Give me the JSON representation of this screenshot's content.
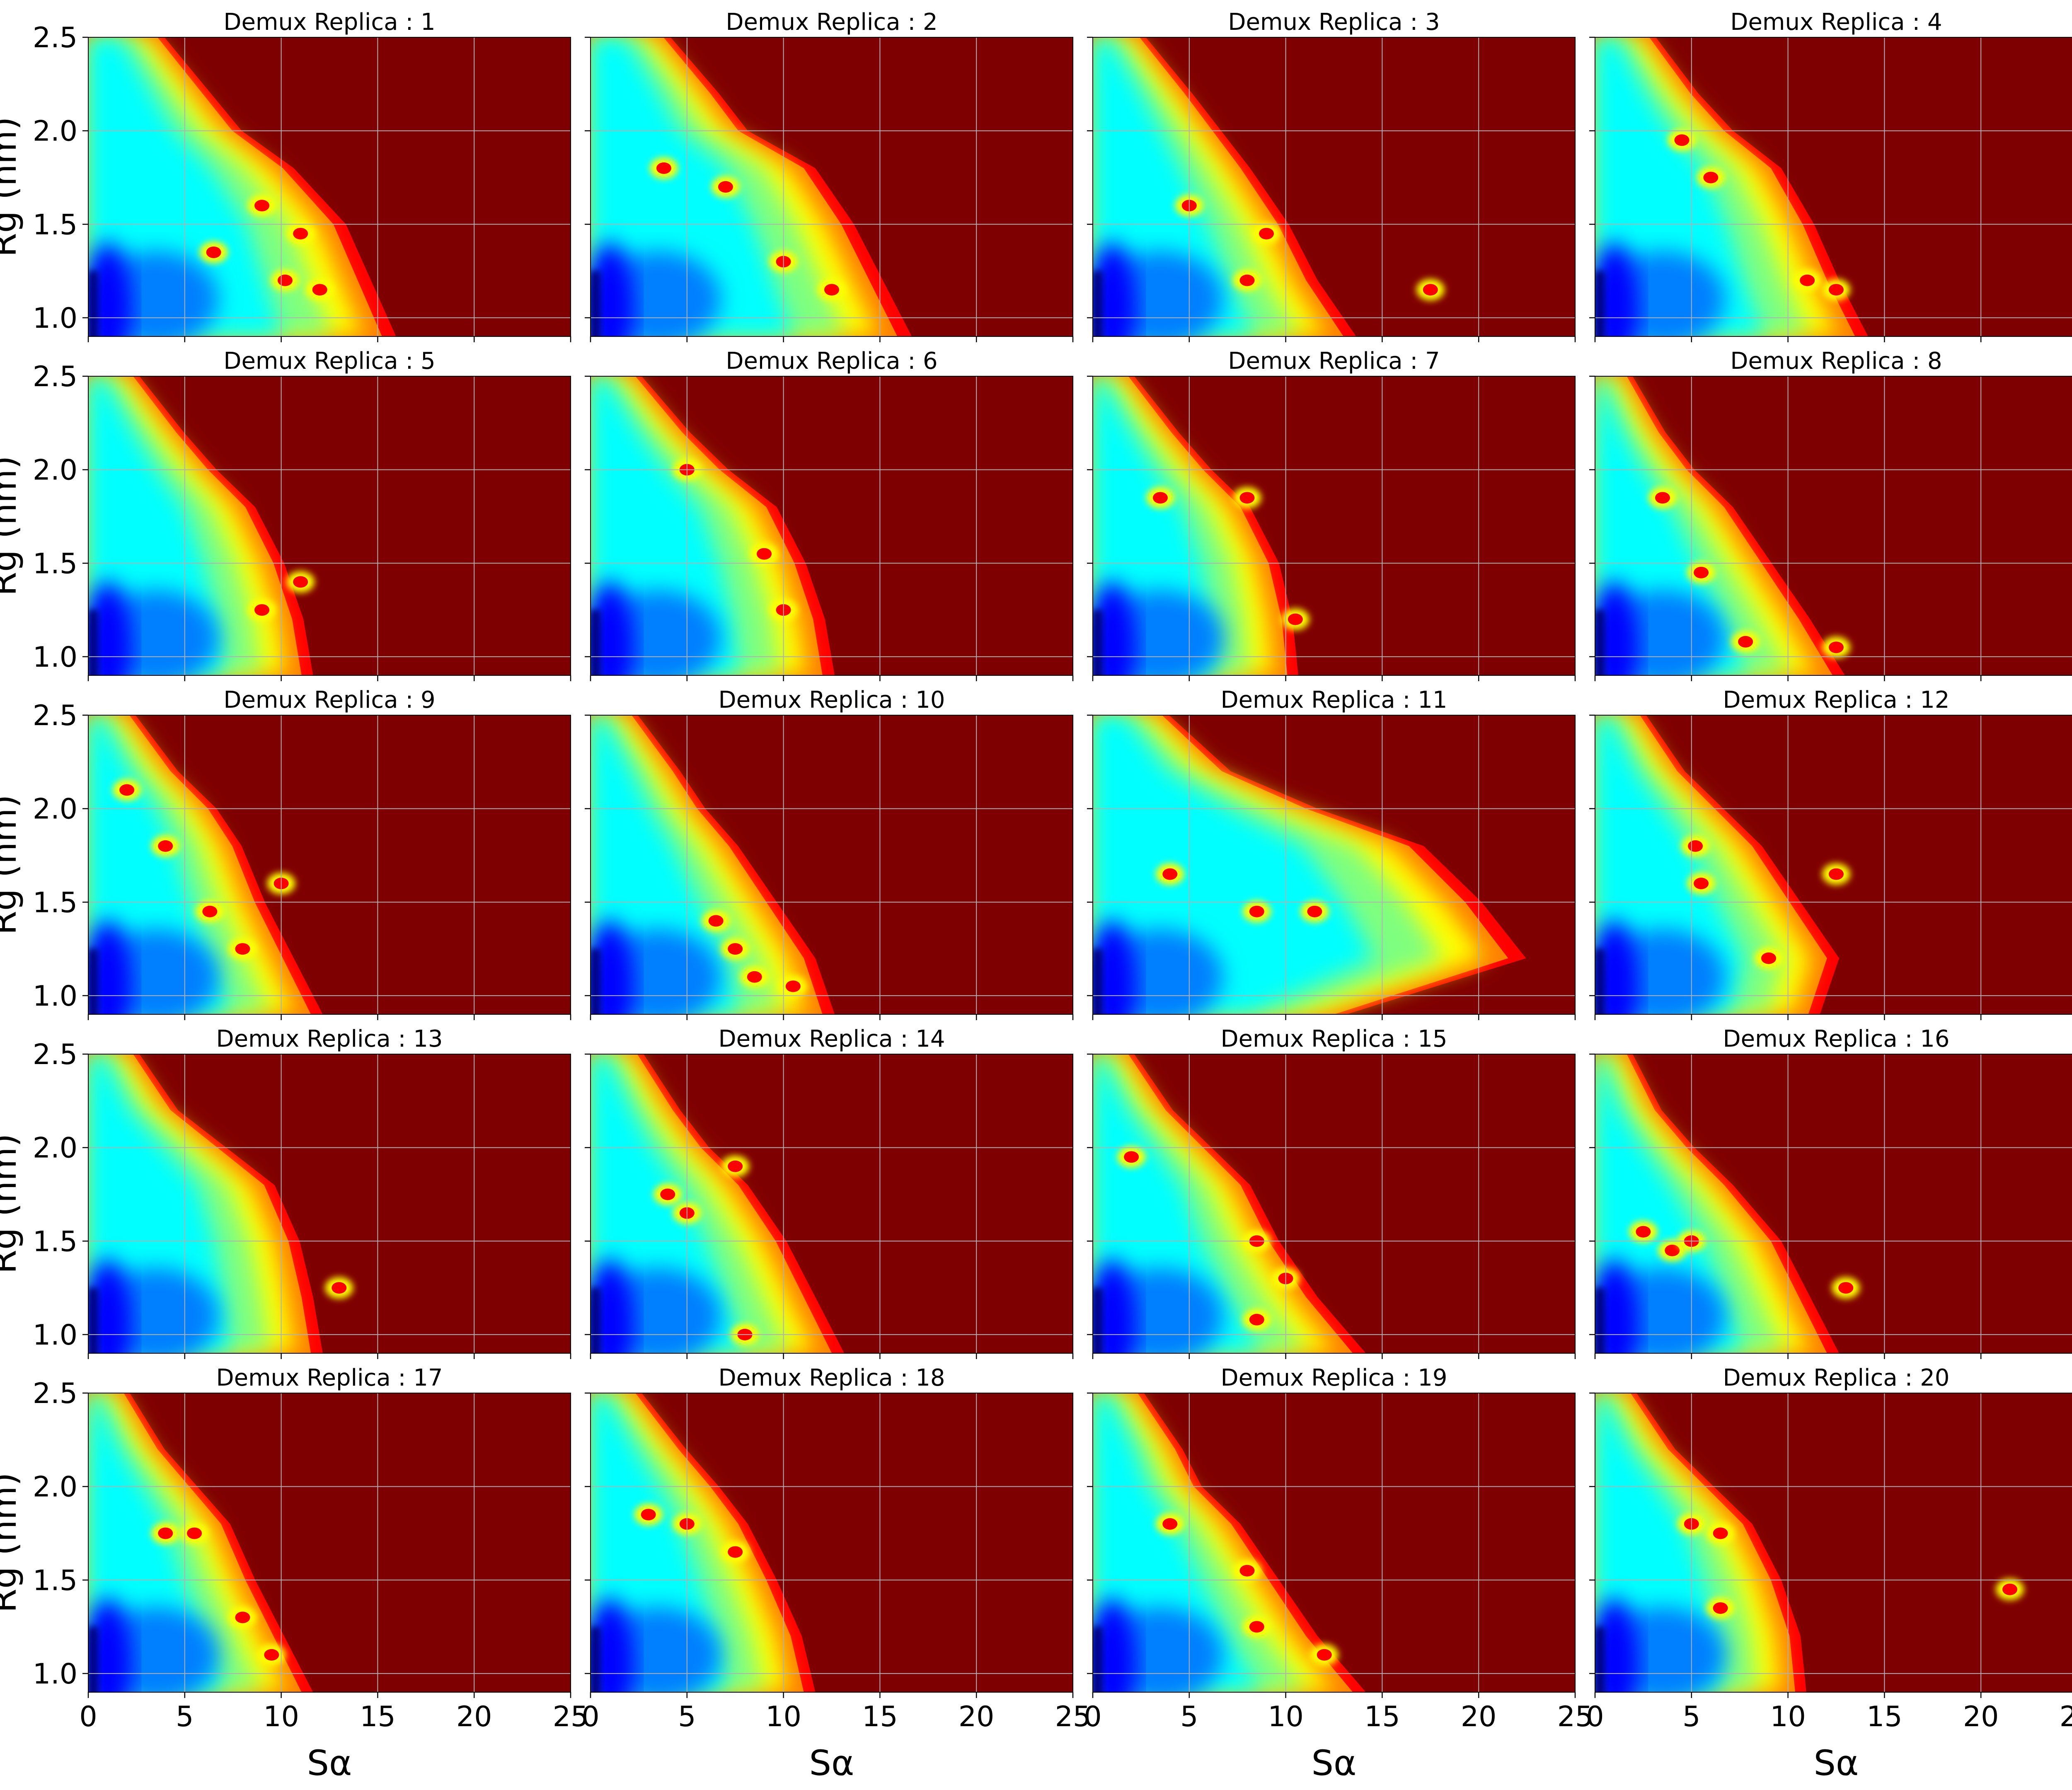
{
  "figure": {
    "colors": {
      "background": "#7f0000",
      "grid": "#b0b0b0",
      "axis": "#000000",
      "colormap": [
        "#00007f",
        "#0000ff",
        "#007fff",
        "#00ffff",
        "#7fff7f",
        "#ffff00",
        "#ff7f00",
        "#ff0000",
        "#7f0000"
      ]
    }
  },
  "chart_data": {
    "type": "heatmap",
    "layout": "5 rows x 4 columns of panels with shared axes",
    "colormap": "jet",
    "xlabel": "Sα",
    "ylabel": "Rg (nm)",
    "xlim": [
      0,
      25
    ],
    "ylim": [
      0.9,
      2.5
    ],
    "xticks": [
      0,
      5,
      10,
      15,
      20,
      25
    ],
    "yticks": [
      1.0,
      1.5,
      2.0,
      2.5
    ],
    "xtick_labels": [
      "0",
      "5",
      "10",
      "15",
      "20",
      "25"
    ],
    "ytick_labels": [
      "1.0",
      "1.5",
      "2.0",
      "2.5"
    ],
    "grid": true,
    "panels": [
      {
        "title": "Demux Replica : 1",
        "sa_extent": [
          3.8,
          6.2,
          7.8,
          10.5,
          13.2,
          14.5,
          15.8
        ],
        "spots": [
          [
            6.5,
            1.35
          ],
          [
            10.2,
            1.2
          ],
          [
            11.0,
            1.45
          ],
          [
            12.0,
            1.15
          ],
          [
            9.0,
            1.6
          ]
        ]
      },
      {
        "title": "Demux Replica : 2",
        "sa_extent": [
          4.0,
          6.5,
          8.0,
          11.5,
          13.5,
          15.0,
          16.5
        ],
        "spots": [
          [
            3.8,
            1.8
          ],
          [
            7.0,
            1.7
          ],
          [
            10.0,
            1.3
          ],
          [
            12.5,
            1.15
          ]
        ]
      },
      {
        "title": "Demux Replica : 3",
        "sa_extent": [
          2.6,
          5.0,
          6.5,
          8.0,
          10.0,
          11.5,
          13.5
        ],
        "spots": [
          [
            5.0,
            1.6
          ],
          [
            8.0,
            1.2
          ],
          [
            9.0,
            1.45
          ],
          [
            17.5,
            1.15
          ]
        ]
      },
      {
        "title": "Demux Replica : 4",
        "sa_extent": [
          3.0,
          5.2,
          7.0,
          9.5,
          11.2,
          12.5,
          14.0
        ],
        "spots": [
          [
            4.5,
            1.95
          ],
          [
            6.0,
            1.75
          ],
          [
            11.0,
            1.2
          ],
          [
            12.5,
            1.15
          ]
        ]
      },
      {
        "title": "Demux Replica : 5",
        "sa_extent": [
          2.5,
          4.8,
          6.5,
          8.5,
          10.0,
          11.0,
          11.5
        ],
        "spots": [
          [
            9.0,
            1.25
          ],
          [
            11.0,
            1.4
          ]
        ]
      },
      {
        "title": "Demux Replica : 6",
        "sa_extent": [
          2.5,
          5.0,
          7.0,
          9.5,
          11.0,
          12.0,
          12.5
        ],
        "spots": [
          [
            5.0,
            2.0
          ],
          [
            9.0,
            1.55
          ],
          [
            10.0,
            1.25
          ]
        ]
      },
      {
        "title": "Demux Replica : 7",
        "sa_extent": [
          2.0,
          4.3,
          6.0,
          8.0,
          9.5,
          10.2,
          10.5
        ],
        "spots": [
          [
            3.5,
            1.85
          ],
          [
            8.0,
            1.85
          ],
          [
            10.5,
            1.2
          ]
        ]
      },
      {
        "title": "Demux Replica : 8",
        "sa_extent": [
          1.8,
          3.5,
          5.0,
          7.0,
          9.0,
          11.0,
          12.8
        ],
        "spots": [
          [
            3.5,
            1.85
          ],
          [
            5.5,
            1.45
          ],
          [
            7.8,
            1.08
          ],
          [
            12.5,
            1.05
          ]
        ]
      },
      {
        "title": "Demux Replica : 9",
        "sa_extent": [
          2.3,
          4.5,
          6.5,
          7.8,
          9.0,
          10.5,
          12.0
        ],
        "spots": [
          [
            2.0,
            2.1
          ],
          [
            4.0,
            1.8
          ],
          [
            6.3,
            1.45
          ],
          [
            8.0,
            1.25
          ],
          [
            10.0,
            1.6
          ]
        ]
      },
      {
        "title": "Demux Replica : 10",
        "sa_extent": [
          2.3,
          4.5,
          5.8,
          7.5,
          9.5,
          11.5,
          12.5
        ],
        "spots": [
          [
            6.5,
            1.4
          ],
          [
            7.5,
            1.25
          ],
          [
            8.5,
            1.1
          ],
          [
            10.5,
            1.05
          ]
        ]
      },
      {
        "title": "Demux Replica : 11",
        "sa_extent": [
          3.8,
          7.0,
          11.5,
          17.0,
          20.0,
          22.3,
          13.0
        ],
        "spots": [
          [
            4.0,
            1.65
          ],
          [
            8.5,
            1.45
          ],
          [
            11.5,
            1.45
          ]
        ]
      },
      {
        "title": "Demux Replica : 12",
        "sa_extent": [
          2.5,
          4.5,
          6.5,
          8.5,
          10.5,
          12.5,
          11.5
        ],
        "spots": [
          [
            5.2,
            1.8
          ],
          [
            5.5,
            1.6
          ],
          [
            9.0,
            1.2
          ],
          [
            12.5,
            1.65
          ]
        ]
      },
      {
        "title": "Demux Replica : 13",
        "sa_extent": [
          2.5,
          4.5,
          7.0,
          9.5,
          10.8,
          11.5,
          12.0
        ],
        "spots": [
          [
            13.0,
            1.25
          ]
        ]
      },
      {
        "title": "Demux Replica : 14",
        "sa_extent": [
          2.6,
          4.5,
          6.0,
          8.0,
          10.0,
          11.5,
          13.0
        ],
        "spots": [
          [
            4.0,
            1.75
          ],
          [
            5.0,
            1.65
          ],
          [
            7.5,
            1.9
          ],
          [
            8.0,
            1.0
          ]
        ]
      },
      {
        "title": "Demux Replica : 15",
        "sa_extent": [
          2.0,
          4.0,
          6.0,
          8.0,
          9.5,
          11.5,
          14.0
        ],
        "spots": [
          [
            2.0,
            1.95
          ],
          [
            8.5,
            1.5
          ],
          [
            10.0,
            1.3
          ],
          [
            8.5,
            1.08
          ]
        ]
      },
      {
        "title": "Demux Replica : 16",
        "sa_extent": [
          1.8,
          3.3,
          5.0,
          7.0,
          9.5,
          11.0,
          12.5
        ],
        "spots": [
          [
            2.5,
            1.55
          ],
          [
            4.0,
            1.45
          ],
          [
            5.0,
            1.5
          ],
          [
            13.0,
            1.25
          ]
        ]
      },
      {
        "title": "Demux Replica : 17",
        "sa_extent": [
          2.0,
          3.8,
          5.5,
          7.2,
          8.5,
          10.0,
          11.5
        ],
        "spots": [
          [
            4.0,
            1.75
          ],
          [
            5.5,
            1.75
          ],
          [
            8.0,
            1.3
          ],
          [
            9.5,
            1.1
          ]
        ]
      },
      {
        "title": "Demux Replica : 18",
        "sa_extent": [
          2.5,
          4.8,
          6.5,
          8.0,
          9.5,
          10.8,
          11.5
        ],
        "spots": [
          [
            3.0,
            1.85
          ],
          [
            5.0,
            1.8
          ],
          [
            7.5,
            1.65
          ]
        ]
      },
      {
        "title": "Demux Replica : 19",
        "sa_extent": [
          2.5,
          4.5,
          5.5,
          7.5,
          9.5,
          11.5,
          14.0
        ],
        "spots": [
          [
            4.0,
            1.8
          ],
          [
            8.0,
            1.55
          ],
          [
            8.5,
            1.25
          ],
          [
            12.0,
            1.1
          ]
        ]
      },
      {
        "title": "Demux Replica : 20",
        "sa_extent": [
          2.0,
          4.0,
          6.0,
          8.0,
          9.5,
          10.5,
          10.8
        ],
        "spots": [
          [
            5.0,
            1.8
          ],
          [
            6.5,
            1.75
          ],
          [
            6.5,
            1.35
          ],
          [
            21.5,
            1.45
          ]
        ]
      }
    ]
  }
}
